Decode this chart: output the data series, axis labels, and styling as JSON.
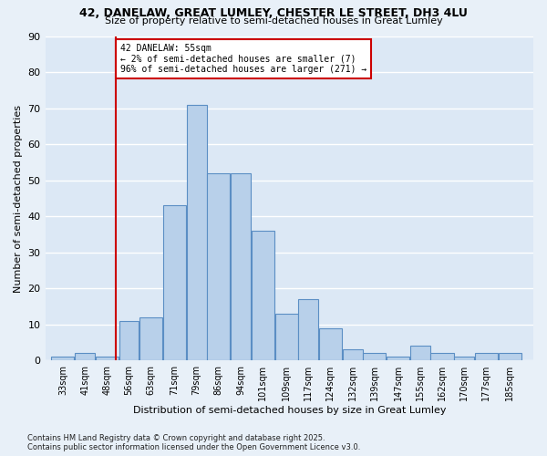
{
  "title1": "42, DANELAW, GREAT LUMLEY, CHESTER LE STREET, DH3 4LU",
  "title2": "Size of property relative to semi-detached houses in Great Lumley",
  "xlabel": "Distribution of semi-detached houses by size in Great Lumley",
  "ylabel": "Number of semi-detached properties",
  "footer1": "Contains HM Land Registry data © Crown copyright and database right 2025.",
  "footer2": "Contains public sector information licensed under the Open Government Licence v3.0.",
  "annotation_title": "42 DANELAW: 55sqm",
  "annotation_line1": "← 2% of semi-detached houses are smaller (7)",
  "annotation_line2": "96% of semi-detached houses are larger (271) →",
  "bar_edges": [
    33,
    41,
    48,
    56,
    63,
    71,
    79,
    86,
    94,
    101,
    109,
    117,
    124,
    132,
    139,
    147,
    155,
    162,
    170,
    177,
    185,
    193
  ],
  "bar_heights": [
    1,
    2,
    1,
    11,
    12,
    43,
    71,
    52,
    52,
    36,
    13,
    17,
    9,
    3,
    2,
    1,
    4,
    2,
    1,
    2,
    2
  ],
  "bar_color": "#b8d0ea",
  "bar_edge_color": "#5b8ec4",
  "vline_color": "#cc0000",
  "vline_x": 55,
  "annotation_box_color": "#ffffff",
  "annotation_box_edge": "#cc0000",
  "bg_color": "#dce8f5",
  "grid_color": "#ffffff",
  "fig_bg": "#e8f0f8",
  "ylim": [
    0,
    90
  ],
  "yticks": [
    0,
    10,
    20,
    30,
    40,
    50,
    60,
    70,
    80,
    90
  ],
  "tick_labels": [
    "33sqm",
    "41sqm",
    "48sqm",
    "56sqm",
    "63sqm",
    "71sqm",
    "79sqm",
    "86sqm",
    "94sqm",
    "101sqm",
    "109sqm",
    "117sqm",
    "124sqm",
    "132sqm",
    "139sqm",
    "147sqm",
    "155sqm",
    "162sqm",
    "170sqm",
    "177sqm",
    "185sqm"
  ]
}
